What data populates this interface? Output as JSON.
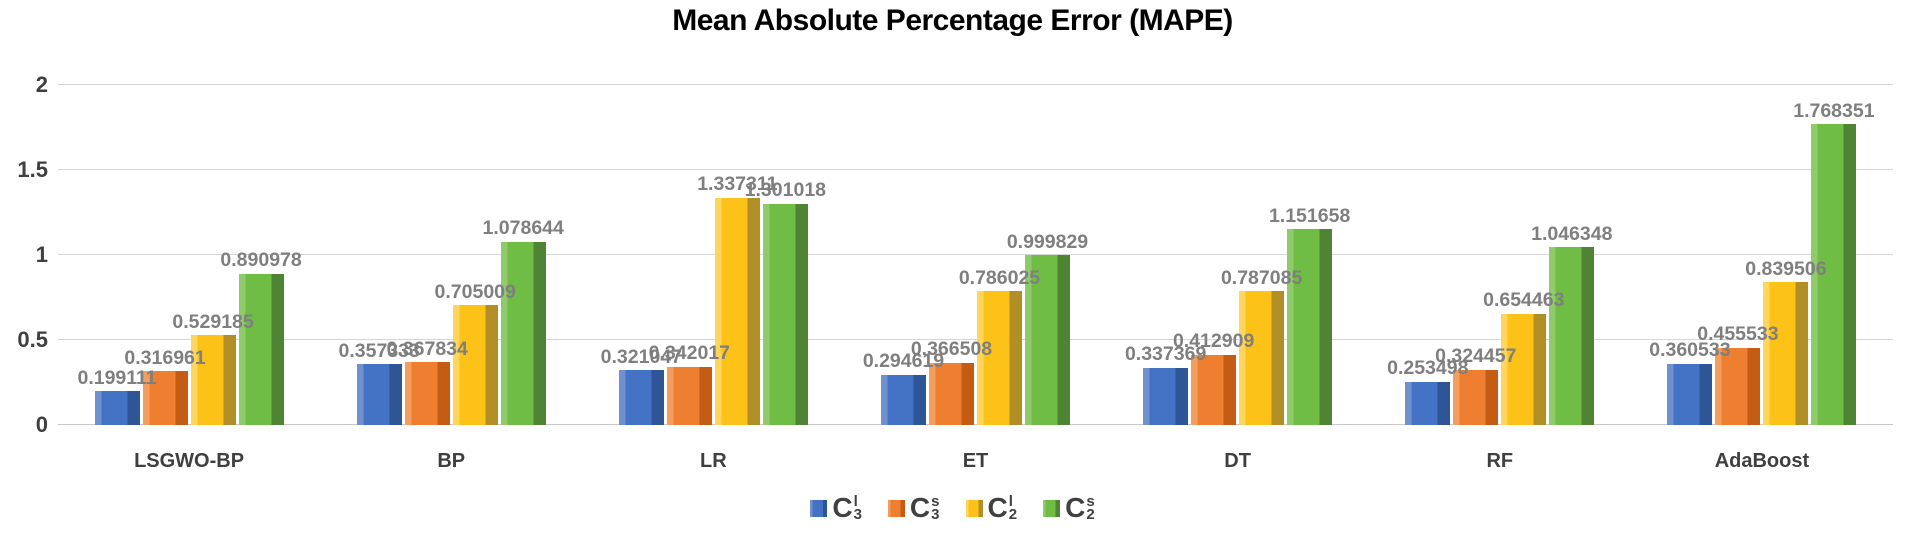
{
  "chart_data": {
    "type": "bar",
    "title": "Mean Absolute Percentage Error (MAPE)",
    "xlabel": "",
    "ylabel": "",
    "ylim": [
      0,
      2
    ],
    "yticks": [
      "0",
      "0.5",
      "1",
      "1.5",
      "2"
    ],
    "grid": "horizontal",
    "legend_position": "bottom-center",
    "data_label_decimals": 6,
    "categories": [
      "LSGWO-BP",
      "BP",
      "LR",
      "ET",
      "DT",
      "RF",
      "AdaBoost"
    ],
    "series": [
      {
        "name": "C3_l",
        "legend": {
          "base": "C",
          "sup": "l",
          "sub": "3"
        },
        "color": "#4472c4",
        "color_light": "#7090ce",
        "color_dark": "#2e5596",
        "values": [
          0.199111,
          0.357333,
          0.321047,
          0.294619,
          0.337369,
          0.253498,
          0.360533
        ]
      },
      {
        "name": "C3_s",
        "legend": {
          "base": "C",
          "sup": "s",
          "sub": "3"
        },
        "color": "#ee7e30",
        "color_light": "#f39d5f",
        "color_dark": "#c45c14",
        "values": [
          0.316961,
          0.367834,
          0.342017,
          0.366508,
          0.412909,
          0.324457,
          0.455533
        ]
      },
      {
        "name": "C2_l",
        "legend": {
          "base": "C",
          "sup": "l",
          "sub": "2"
        },
        "color": "#fdc218",
        "color_light": "#ffd55c",
        "color_dark": "#b18e26",
        "values": [
          0.529185,
          0.705009,
          1.337311,
          0.786025,
          0.787085,
          0.654463,
          0.839506
        ]
      },
      {
        "name": "C2_s",
        "legend": {
          "base": "C",
          "sup": "s",
          "sub": "2"
        },
        "color": "#6fbd45",
        "color_light": "#8fcb6b",
        "color_dark": "#4e8434",
        "values": [
          0.890978,
          1.078644,
          1.301018,
          0.999829,
          1.151658,
          1.046348,
          1.768351
        ]
      }
    ],
    "colors": {
      "gridline": "#d6d6d6",
      "axis_text": "#3f3f3f",
      "data_label": "#7f7f7f",
      "title": "#000000"
    }
  }
}
